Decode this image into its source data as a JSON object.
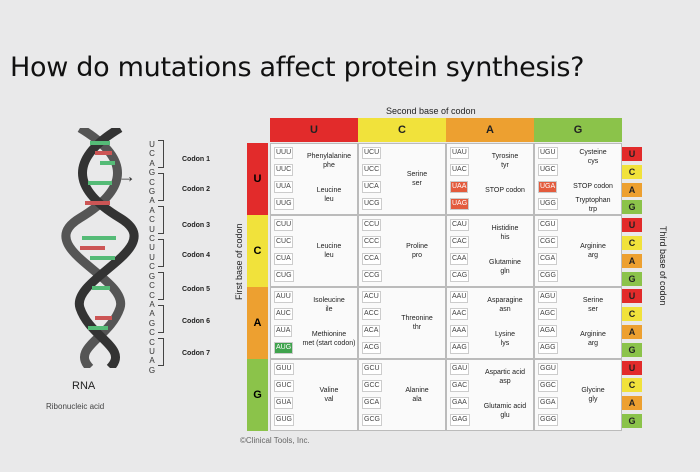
{
  "title": "How do mutations affect protein synthesis?",
  "labels": {
    "second_base": "Second base of codon",
    "first_base": "First base of codon",
    "third_base": "Third base of codon",
    "rna": "RNA",
    "rna_full": "Ribonucleic acid",
    "copyright": "©Clinical Tools, Inc."
  },
  "rna_strand": [
    "U",
    "C",
    "A",
    "G",
    "C",
    "G",
    "A",
    "A",
    "C",
    "U",
    "C",
    "U",
    "U",
    "C",
    "G",
    "C",
    "C",
    "A",
    "A",
    "G",
    "C",
    "C",
    "U",
    "A",
    "G"
  ],
  "codons": [
    "Codon 1",
    "Codon 2",
    "Codon 3",
    "Codon 4",
    "Codon 5",
    "Codon 6",
    "Codon 7"
  ],
  "second_bases": [
    "U",
    "C",
    "A",
    "G"
  ],
  "first_bases": [
    "U",
    "C",
    "A",
    "G"
  ],
  "third_bases": [
    "U",
    "C",
    "A",
    "G",
    "U",
    "C",
    "A",
    "G",
    "U",
    "C",
    "A",
    "G",
    "U",
    "C",
    "A",
    "G"
  ],
  "colors": {
    "u": "#e22b2b",
    "c": "#f1e23b",
    "a": "#eda030",
    "g": "#8bc34a",
    "stop": "#e35b3d",
    "start": "#3fa34d"
  },
  "table": {
    "row_U": {
      "col_U": {
        "codons": [
          "UUU",
          "UUC",
          "UUA",
          "UUG"
        ],
        "aa1": "Phenylalanine",
        "aa1b": "phe",
        "aa2": "Leucine",
        "aa2b": "leu"
      },
      "col_C": {
        "codons": [
          "UCU",
          "UCC",
          "UCA",
          "UCG"
        ],
        "aa1": "Serine",
        "aa1b": "ser"
      },
      "col_A": {
        "codons": [
          "UAU",
          "UAC",
          "UAA",
          "UAG"
        ],
        "aa1": "Tyrosine",
        "aa1b": "tyr",
        "aa2": "STOP codon"
      },
      "col_G": {
        "codons": [
          "UGU",
          "UGC",
          "UGA",
          "UGG"
        ],
        "aa1": "Cysteine",
        "aa1b": "cys",
        "aa2": "STOP codon",
        "aa3": "Tryptophan",
        "aa3b": "trp"
      }
    },
    "row_C": {
      "col_U": {
        "codons": [
          "CUU",
          "CUC",
          "CUA",
          "CUG"
        ],
        "aa1": "Leucine",
        "aa1b": "leu"
      },
      "col_C": {
        "codons": [
          "CCU",
          "CCC",
          "CCA",
          "CCG"
        ],
        "aa1": "Proline",
        "aa1b": "pro"
      },
      "col_A": {
        "codons": [
          "CAU",
          "CAC",
          "CAA",
          "CAG"
        ],
        "aa1": "Histidine",
        "aa1b": "his",
        "aa2": "Glutamine",
        "aa2b": "gln"
      },
      "col_G": {
        "codons": [
          "CGU",
          "CGC",
          "CGA",
          "CGG"
        ],
        "aa1": "Arginine",
        "aa1b": "arg"
      }
    },
    "row_A": {
      "col_U": {
        "codons": [
          "AUU",
          "AUC",
          "AUA",
          "AUG"
        ],
        "aa1": "Isoleucine",
        "aa1b": "ile",
        "aa2": "Methionine",
        "aa2b": "met (start codon)"
      },
      "col_C": {
        "codons": [
          "ACU",
          "ACC",
          "ACA",
          "ACG"
        ],
        "aa1": "Threonine",
        "aa1b": "thr"
      },
      "col_A": {
        "codons": [
          "AAU",
          "AAC",
          "AAA",
          "AAG"
        ],
        "aa1": "Asparagine",
        "aa1b": "asn",
        "aa2": "Lysine",
        "aa2b": "lys"
      },
      "col_G": {
        "codons": [
          "AGU",
          "AGC",
          "AGA",
          "AGG"
        ],
        "aa1": "Serine",
        "aa1b": "ser",
        "aa2": "Arginine",
        "aa2b": "arg"
      }
    },
    "row_G": {
      "col_U": {
        "codons": [
          "GUU",
          "GUC",
          "GUA",
          "GUG"
        ],
        "aa1": "Valine",
        "aa1b": "val"
      },
      "col_C": {
        "codons": [
          "GCU",
          "GCC",
          "GCA",
          "GCG"
        ],
        "aa1": "Alanine",
        "aa1b": "ala"
      },
      "col_A": {
        "codons": [
          "GAU",
          "GAC",
          "GAA",
          "GAG"
        ],
        "aa1": "Aspartic acid",
        "aa1b": "asp",
        "aa2": "Glutamic acid",
        "aa2b": "glu"
      },
      "col_G": {
        "codons": [
          "GGU",
          "GGC",
          "GGA",
          "GGG"
        ],
        "aa1": "Glycine",
        "aa1b": "gly"
      }
    }
  }
}
